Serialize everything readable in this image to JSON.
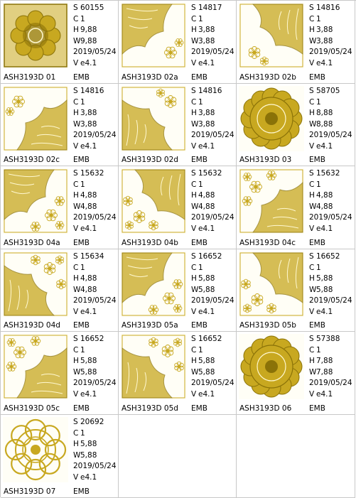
{
  "colors": {
    "stitch": "#c8a820",
    "stitch_dark": "#8a7208",
    "grid": "#c8c8c8",
    "paper": "#fffef6"
  },
  "designs": [
    {
      "name": "ASH3193D 01",
      "stitches": "60155",
      "colors": "1",
      "height": "9,88",
      "width": "9,88",
      "date": "2019/05/24",
      "version": "e4.1",
      "format": "EMB",
      "motif": "full-square-dense"
    },
    {
      "name": "ASH3193D 02a",
      "stitches": "14817",
      "colors": "1",
      "height": "3,88",
      "width": "3,88",
      "date": "2019/05/24",
      "version": "e4.1",
      "format": "EMB",
      "motif": "corner-lace"
    },
    {
      "name": "ASH3193D 02b",
      "stitches": "14816",
      "colors": "1",
      "height": "3,88",
      "width": "3,88",
      "date": "2019/05/24",
      "version": "e4.1",
      "format": "EMB",
      "motif": "corner-lace"
    },
    {
      "name": "ASH3193D 02c",
      "stitches": "14816",
      "colors": "1",
      "height": "3,88",
      "width": "3,88",
      "date": "2019/05/24",
      "version": "e4.1",
      "format": "EMB",
      "motif": "corner-lace"
    },
    {
      "name": "ASH3193D 02d",
      "stitches": "14816",
      "colors": "1",
      "height": "3,88",
      "width": "3,88",
      "date": "2019/05/24",
      "version": "e4.1",
      "format": "EMB",
      "motif": "corner-lace"
    },
    {
      "name": "ASH3193D 03",
      "stitches": "58705",
      "colors": "1",
      "height": "8,88",
      "width": "8,88",
      "date": "2019/05/24",
      "version": "e4.1",
      "format": "EMB",
      "motif": "round-medallion"
    },
    {
      "name": "ASH3193D 04a",
      "stitches": "15632",
      "colors": "1",
      "height": "4,88",
      "width": "4,88",
      "date": "2019/05/24",
      "version": "e4.1",
      "format": "EMB",
      "motif": "corner-lace-flowers"
    },
    {
      "name": "ASH3193D 04b",
      "stitches": "15632",
      "colors": "1",
      "height": "4,88",
      "width": "4,88",
      "date": "2019/05/24",
      "version": "e4.1",
      "format": "EMB",
      "motif": "corner-lace-flowers"
    },
    {
      "name": "ASH3193D 04c",
      "stitches": "15632",
      "colors": "1",
      "height": "4,88",
      "width": "4,88",
      "date": "2019/05/24",
      "version": "e4.1",
      "format": "EMB",
      "motif": "corner-lace-flowers"
    },
    {
      "name": "ASH3193D 04d",
      "stitches": "15634",
      "colors": "1",
      "height": "4,88",
      "width": "4,88",
      "date": "2019/05/24",
      "version": "e4.1",
      "format": "EMB",
      "motif": "corner-lace-flowers"
    },
    {
      "name": "ASH3193D 05a",
      "stitches": "16652",
      "colors": "1",
      "height": "5,88",
      "width": "5,88",
      "date": "2019/05/24",
      "version": "e4.1",
      "format": "EMB",
      "motif": "corner-lace-flowers"
    },
    {
      "name": "ASH3193D 05b",
      "stitches": "16652",
      "colors": "1",
      "height": "5,88",
      "width": "5,88",
      "date": "2019/05/24",
      "version": "e4.1",
      "format": "EMB",
      "motif": "corner-lace-flowers"
    },
    {
      "name": "ASH3193D 05c",
      "stitches": "16652",
      "colors": "1",
      "height": "5,88",
      "width": "5,88",
      "date": "2019/05/24",
      "version": "e4.1",
      "format": "EMB",
      "motif": "corner-lace-flowers"
    },
    {
      "name": "ASH3193D 05d",
      "stitches": "16652",
      "colors": "1",
      "height": "5,88",
      "width": "5,88",
      "date": "2019/05/24",
      "version": "e4.1",
      "format": "EMB",
      "motif": "corner-lace-flowers"
    },
    {
      "name": "ASH3193D 06",
      "stitches": "57388",
      "colors": "1",
      "height": "7,88",
      "width": "7,88",
      "date": "2019/05/24",
      "version": "e4.1",
      "format": "EMB",
      "motif": "round-medallion"
    },
    {
      "name": "ASH3193D 07",
      "stitches": "20692",
      "colors": "1",
      "height": "5,88",
      "width": "5,88",
      "date": "2019/05/24",
      "version": "e4.1",
      "format": "EMB",
      "motif": "round-doily"
    }
  ],
  "labels": {
    "stitches": "S",
    "colors": "C",
    "height": "H",
    "width": "W",
    "version": "V"
  }
}
